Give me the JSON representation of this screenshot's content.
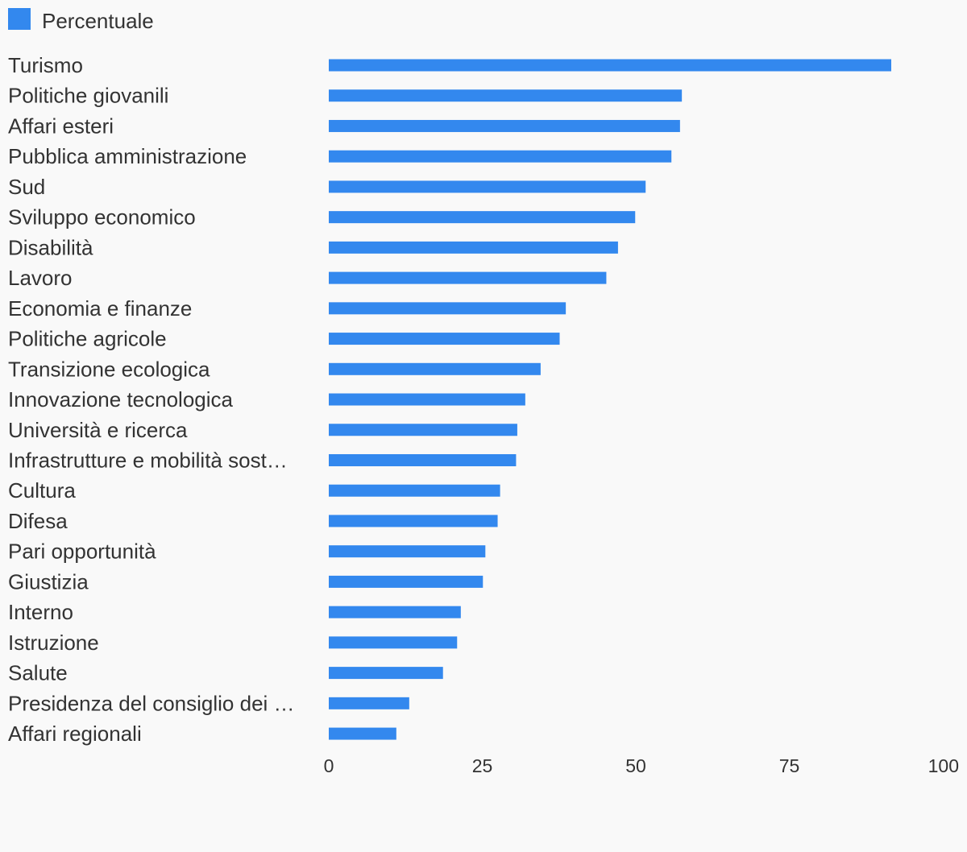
{
  "chart_data": {
    "type": "bar",
    "orientation": "horizontal",
    "categories": [
      "Turismo",
      "Politiche giovanili",
      "Affari esteri",
      "Pubblica amministrazione",
      "Sud",
      "Sviluppo economico",
      "Disabilità",
      "Lavoro",
      "Economia e finanze",
      "Politiche agricole",
      "Transizione ecologica",
      "Innovazione tecnologica",
      "Università e ricerca",
      "Infrastrutture e mobilità sost…",
      "Cultura",
      "Difesa",
      "Pari opportunità",
      "Giustizia",
      "Interno",
      "Istruzione",
      "Salute",
      "Presidenza del consiglio dei …",
      "Affari regionali"
    ],
    "series": [
      {
        "name": "Percentuale",
        "color": "#3388ee",
        "values": [
          91.6,
          57.5,
          57.2,
          55.8,
          51.6,
          49.9,
          47.1,
          45.2,
          38.6,
          37.6,
          34.5,
          32.0,
          30.7,
          30.5,
          27.9,
          27.5,
          25.5,
          25.1,
          21.5,
          20.9,
          18.6,
          13.1,
          11.0
        ]
      }
    ],
    "xlim": [
      0,
      100
    ],
    "xticks": [
      "0",
      "25",
      "50",
      "75",
      "100"
    ],
    "legend": {
      "position": "top-left",
      "label": "Percentuale"
    },
    "grid": false
  }
}
